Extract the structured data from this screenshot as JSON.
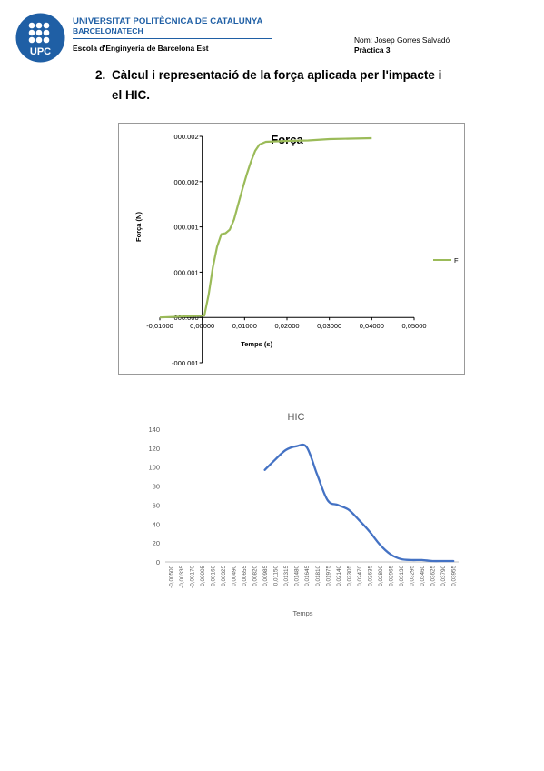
{
  "header": {
    "university_line1": "UNIVERSITAT POLITÈCNICA DE CATALUNYA",
    "university_line2": "BARCELONATECH",
    "school": "Escola d'Enginyeria de Barcelona Est",
    "logo_text": "UPC",
    "author": "Nom: Josep Gorres Salvadó",
    "practice": "Pràctica 3"
  },
  "section": {
    "number": "2.",
    "title_line1": "Càlcul i representació de la força aplicada per l'impacte i",
    "title_line2": "el HIC."
  },
  "chart_data": [
    {
      "type": "line",
      "title": "Força",
      "xlabel": "Temps (s)",
      "ylabel": "Força (N)",
      "legend": "right",
      "grid": false,
      "colors": {
        "series": "#9bbb59"
      },
      "x_ticks": [
        "-0,01000",
        "0,00000",
        "0,01000",
        "0,02000",
        "0,03000",
        "0,04000",
        "0,05000"
      ],
      "x_tick_values": [
        -0.01,
        0.0,
        0.01,
        0.02,
        0.03,
        0.04,
        0.05
      ],
      "y_ticks": [
        "-000.001",
        "000.000",
        "000.001",
        "000.001",
        "000.002",
        "000.002"
      ],
      "y_tick_values": [
        -0.5,
        0,
        0.5,
        1,
        1.5,
        2
      ],
      "xlim": [
        -0.01,
        0.05
      ],
      "ylim": [
        -0.5,
        2
      ],
      "series": [
        {
          "name": "F",
          "x": [
            -0.01,
            0.0005,
            0.0015,
            0.0025,
            0.0035,
            0.0045,
            0.0055,
            0.0065,
            0.0075,
            0.0085,
            0.0095,
            0.0105,
            0.0115,
            0.0125,
            0.0135,
            0.015,
            0.02,
            0.025,
            0.03,
            0.035,
            0.04
          ],
          "y": [
            0,
            0.02,
            0.25,
            0.55,
            0.78,
            0.92,
            0.93,
            0.97,
            1.08,
            1.25,
            1.42,
            1.58,
            1.72,
            1.84,
            1.91,
            1.94,
            1.95,
            1.955,
            1.97,
            1.975,
            1.98
          ]
        }
      ]
    },
    {
      "type": "line",
      "title": "HIC",
      "xlabel": "Temps",
      "ylabel": "",
      "grid": false,
      "colors": {
        "series": "#4472c4"
      },
      "ylim": [
        0,
        140
      ],
      "y_ticks": [
        "0",
        "20",
        "40",
        "60",
        "80",
        "100",
        "120",
        "140"
      ],
      "categories": [
        "-0,00500",
        "-0,00335",
        "-0,00170",
        "-0,00005",
        "0,00160",
        "0,00325",
        "0,00490",
        "0,00655",
        "0,00820",
        "0,00985",
        "0,01150",
        "0,01315",
        "0,01480",
        "0,01645",
        "0,01810",
        "0,01975",
        "0,02140",
        "0,02305",
        "0,02470",
        "0,02635",
        "0,02800",
        "0,02965",
        "0,03130",
        "0,03295",
        "0,03460",
        "0,03625",
        "0,03790",
        "0,03955"
      ],
      "series": [
        {
          "name": "",
          "x": [
            0.00985,
            0.0115,
            0.01315,
            0.0148,
            0.01645,
            0.0181,
            0.01975,
            0.0214,
            0.02305,
            0.0247,
            0.02635,
            0.028,
            0.02965,
            0.0313,
            0.03295,
            0.0346,
            0.03625,
            0.0379,
            0.03955
          ],
          "values": [
            97,
            108,
            118,
            122,
            121,
            92,
            65,
            60,
            55,
            44,
            32,
            18,
            8,
            3,
            2,
            2,
            1,
            1,
            1
          ]
        }
      ]
    }
  ]
}
